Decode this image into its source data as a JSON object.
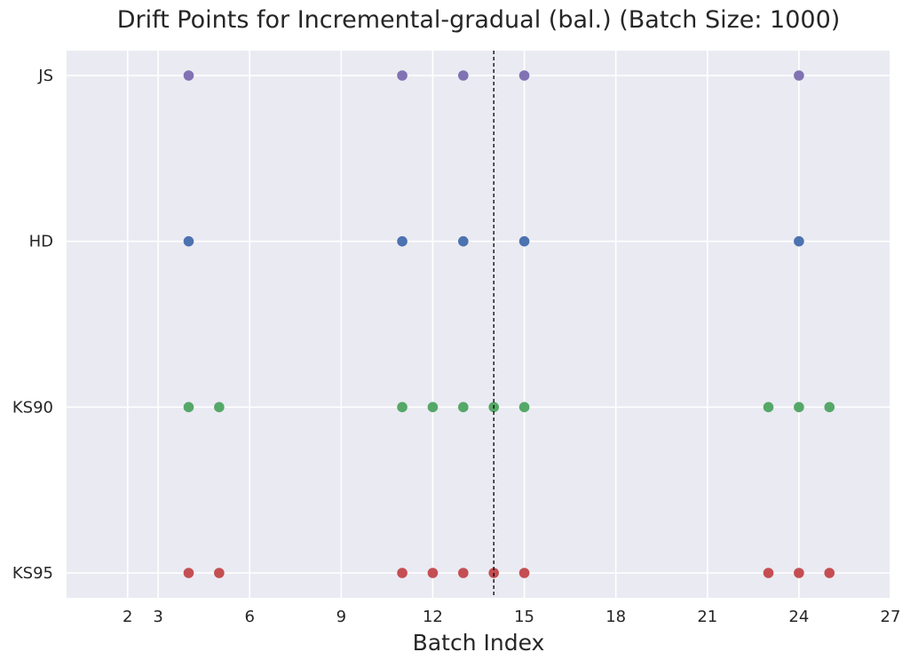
{
  "chart_data": {
    "type": "scatter",
    "title": "Drift Points for Incremental-gradual (bal.) (Batch Size: 1000)",
    "xlabel": "Batch Index",
    "ylabel": "",
    "xlim": [
      0,
      27
    ],
    "x_ticks": [
      2,
      3,
      6,
      9,
      12,
      15,
      18,
      21,
      24,
      27
    ],
    "categories": [
      "JS",
      "HD",
      "KS90",
      "KS95"
    ],
    "grid": true,
    "legend": "none",
    "reference_line": {
      "x": 14,
      "style": "dashed",
      "color": "#000000"
    },
    "series": [
      {
        "category": "JS",
        "color": "#8172b3",
        "x": [
          4,
          11,
          13,
          15,
          24
        ]
      },
      {
        "category": "HD",
        "color": "#4c72b0",
        "x": [
          4,
          11,
          13,
          15,
          24
        ]
      },
      {
        "category": "KS90",
        "color": "#55a868",
        "x": [
          4,
          5,
          11,
          12,
          13,
          14,
          15,
          23,
          24,
          25
        ]
      },
      {
        "category": "KS95",
        "color": "#c44e52",
        "x": [
          4,
          5,
          11,
          12,
          13,
          14,
          15,
          23,
          24,
          25
        ]
      }
    ],
    "colors": {
      "plot_background": "#eaeaf2",
      "grid": "#ffffff"
    }
  }
}
